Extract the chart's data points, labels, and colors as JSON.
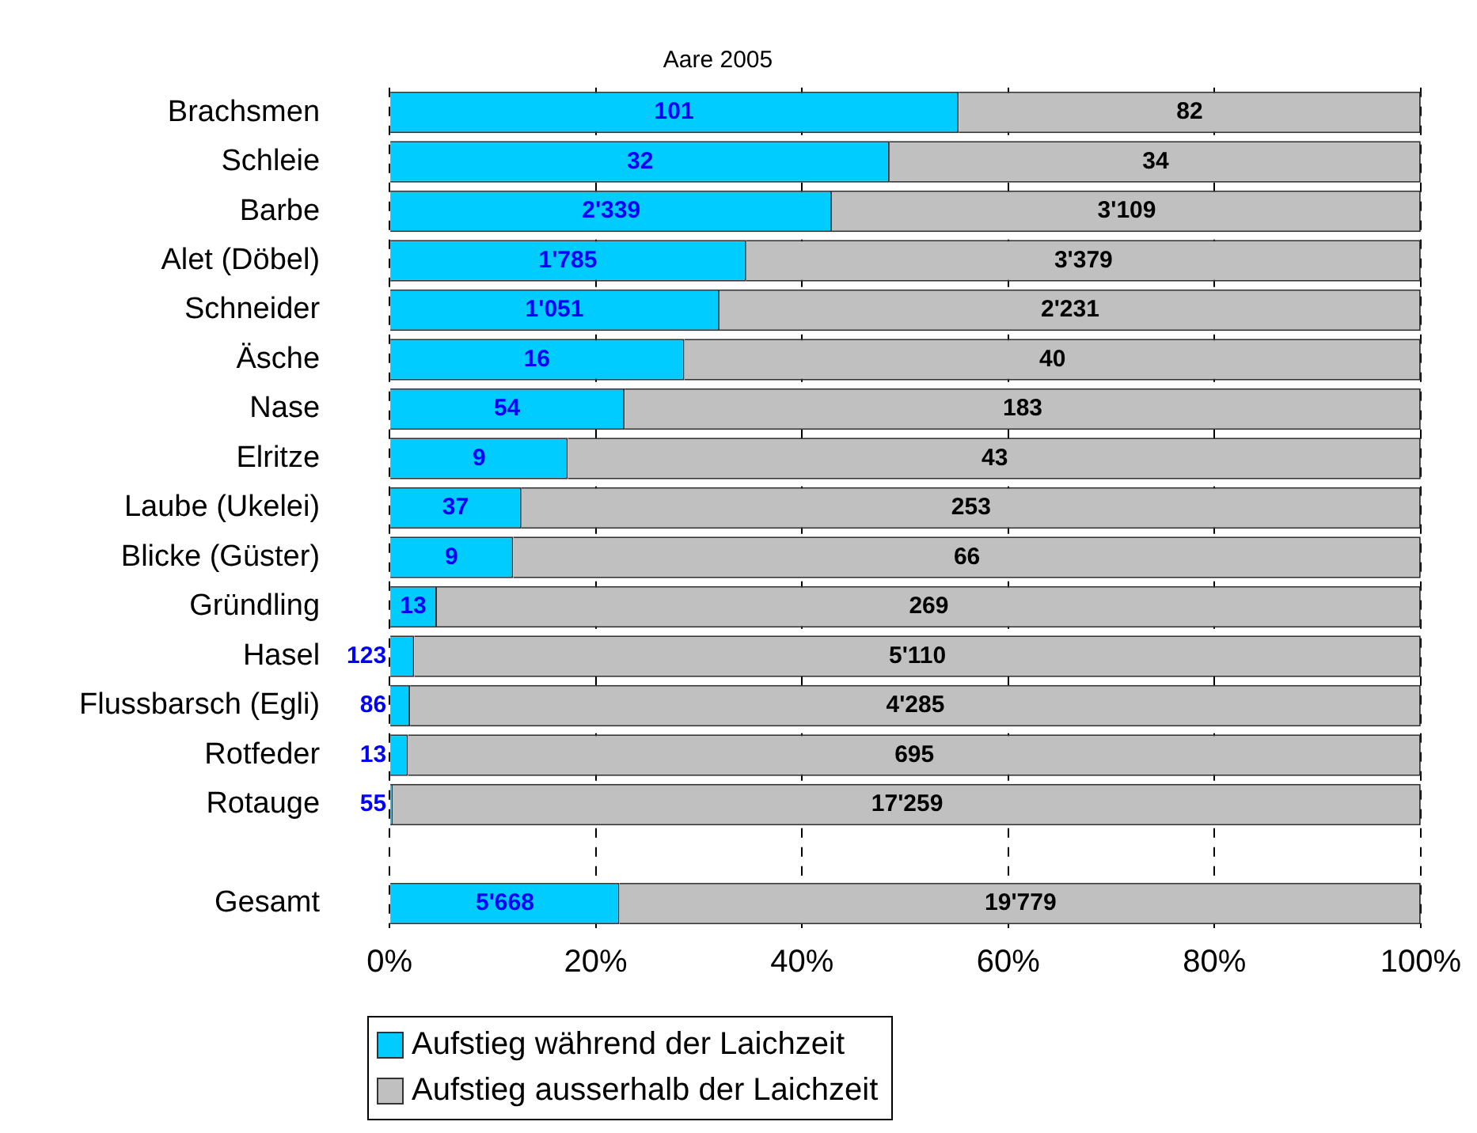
{
  "chart_data": {
    "type": "bar",
    "orientation": "horizontal",
    "stacked": true,
    "title": "Aare 2005",
    "categories": [
      "Brachsmen",
      "Schleie",
      "Barbe",
      "Alet (Döbel)",
      "Schneider",
      "Äsche",
      "Nase",
      "Elritze",
      "Laube (Ukelei)",
      "Blicke (Güster)",
      "Gründling",
      "Hasel",
      "Flussbarsch (Egli)",
      "Rotfeder",
      "Rotauge",
      null,
      "Gesamt"
    ],
    "series": [
      {
        "name": "Aufstieg während der Laichzeit",
        "color": "#00ccff",
        "values": [
          55.2,
          48.5,
          42.9,
          34.6,
          32.0,
          28.6,
          22.8,
          17.3,
          12.8,
          12.0,
          4.6,
          2.4,
          2.0,
          1.8,
          0.3,
          null,
          22.3
        ]
      },
      {
        "name": "Aufstieg ausserhalb der Laichzeit",
        "color": "#c0c0c0",
        "values": [
          44.8,
          51.5,
          57.1,
          65.4,
          68.0,
          71.4,
          77.2,
          82.7,
          87.2,
          88.0,
          95.4,
          97.6,
          98.0,
          98.2,
          99.7,
          null,
          77.7
        ]
      }
    ],
    "annotations": [
      {
        "text": "101",
        "x": 27.6,
        "y": "Brachsmen"
      },
      {
        "text": "82",
        "x": 77.6,
        "y": "Brachsmen"
      },
      {
        "text": "32",
        "x": 24.3,
        "y": "Schleie"
      },
      {
        "text": "34",
        "x": 74.3,
        "y": "Schleie"
      },
      {
        "text": "2'339",
        "x": 21.5,
        "y": "Barbe"
      },
      {
        "text": "3'109",
        "x": 71.5,
        "y": "Barbe"
      },
      {
        "text": "1'785",
        "x": 17.3,
        "y": "Alet (Döbel)"
      },
      {
        "text": "3'379",
        "x": 67.3,
        "y": "Alet (Döbel)"
      },
      {
        "text": "1'051",
        "x": 16.0,
        "y": "Schneider"
      },
      {
        "text": "2'231",
        "x": 66.0,
        "y": "Schneider"
      },
      {
        "text": "16",
        "x": 14.3,
        "y": "Äsche"
      },
      {
        "text": "40",
        "x": 64.3,
        "y": "Äsche"
      },
      {
        "text": "54",
        "x": 11.4,
        "y": "Nase"
      },
      {
        "text": "183",
        "x": 61.4,
        "y": "Nase"
      },
      {
        "text": "9",
        "x": 8.7,
        "y": "Elritze"
      },
      {
        "text": "43",
        "x": 58.7,
        "y": "Elritze"
      },
      {
        "text": "37",
        "x": 6.4,
        "y": "Laube (Ukelei)"
      },
      {
        "text": "253",
        "x": 56.4,
        "y": "Laube (Ukelei)"
      },
      {
        "text": "9",
        "x": 6.0,
        "y": "Blicke (Güster)"
      },
      {
        "text": "66",
        "x": 56.0,
        "y": "Blicke (Güster)"
      },
      {
        "text": "13",
        "x": 2.3,
        "y": "Gründling"
      },
      {
        "text": "269",
        "x": 52.3,
        "y": "Gründling"
      },
      {
        "text": "123",
        "x": 0,
        "y": "Hasel"
      },
      {
        "text": "5'110",
        "x": 51.2,
        "y": "Hasel"
      },
      {
        "text": "86",
        "x": 0,
        "y": "Flussbarsch (Egli)"
      },
      {
        "text": "4'285",
        "x": 51.0,
        "y": "Flussbarsch (Egli)"
      },
      {
        "text": "13",
        "x": 0,
        "y": "Rotfeder"
      },
      {
        "text": "695",
        "x": 50.9,
        "y": "Rotfeder"
      },
      {
        "text": "55",
        "x": 0,
        "y": "Rotauge"
      },
      {
        "text": "17'259",
        "x": 50.2,
        "y": "Rotauge"
      },
      {
        "text": "5'668",
        "x": 11.2,
        "y": "Gesamt"
      },
      {
        "text": "19'779",
        "x": 61.2,
        "y": "Gesamt"
      }
    ],
    "xlim": [
      0,
      100
    ],
    "xticks": [
      {
        "value": 0,
        "label": "0%"
      },
      {
        "value": 20,
        "label": "20%"
      },
      {
        "value": 40,
        "label": "40%"
      },
      {
        "value": 60,
        "label": "60%"
      },
      {
        "value": 80,
        "label": "80%"
      },
      {
        "value": 100,
        "label": "100%"
      }
    ],
    "grid": "x",
    "legend": "bottom"
  }
}
